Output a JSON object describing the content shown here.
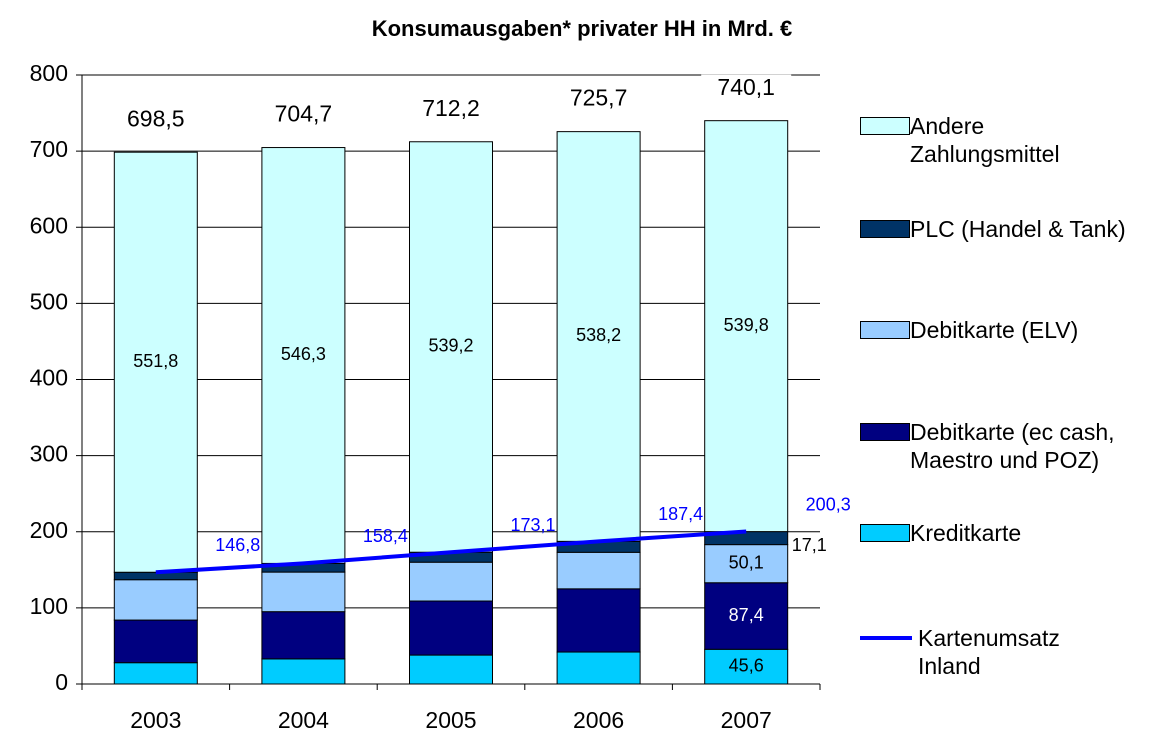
{
  "chart_data": {
    "type": "bar",
    "stacked": true,
    "title": "Konsumausgaben* privater HH in Mrd. €",
    "categories": [
      "2003",
      "2004",
      "2005",
      "2006",
      "2007"
    ],
    "ylim": [
      0,
      800
    ],
    "yticks": [
      0,
      100,
      200,
      300,
      400,
      500,
      600,
      700,
      800
    ],
    "grid": true,
    "legend": "right",
    "series": [
      {
        "name": "Kreditkarte",
        "color": "#00ccff",
        "values": [
          28,
          33,
          38,
          42,
          45.6
        ],
        "value_labels": [
          null,
          null,
          null,
          null,
          "45,6"
        ]
      },
      {
        "name": "Debitkarte (ec cash, Maestro und POZ)",
        "color": "#000080",
        "values": [
          56,
          62,
          71,
          83,
          87.4
        ],
        "value_labels": [
          null,
          null,
          null,
          null,
          "87,4"
        ]
      },
      {
        "name": "Debitkarte (ELV)",
        "color": "#99ccff",
        "values": [
          53,
          52,
          51,
          48,
          50.1
        ],
        "value_labels": [
          null,
          null,
          null,
          null,
          "50,1"
        ]
      },
      {
        "name": "PLC (Handel & Tank)",
        "color": "#003366",
        "values": [
          9.8,
          11.4,
          13.1,
          14.4,
          17.1
        ],
        "value_labels": [
          null,
          null,
          null,
          null,
          "17,1"
        ]
      },
      {
        "name": "Andere Zahlungsmittel",
        "color": "#ccffff",
        "values": [
          551.8,
          546.3,
          539.2,
          538.2,
          539.8
        ],
        "value_labels": [
          "551,8",
          "546,3",
          "539,2",
          "538,2",
          "539,8"
        ]
      }
    ],
    "line": {
      "name": "Kartenumsatz Inland",
      "color": "#0000ff",
      "values": [
        146.8,
        158.4,
        173.1,
        187.4,
        200.3
      ],
      "value_labels": [
        "146,8",
        "158,4",
        "173,1",
        "187,4",
        "200,3"
      ]
    },
    "totals": {
      "values": [
        698.5,
        704.7,
        712.2,
        725.7,
        740.1
      ],
      "value_labels": [
        "698,5",
        "704,7",
        "712,2",
        "725,7",
        "740,1"
      ]
    }
  }
}
